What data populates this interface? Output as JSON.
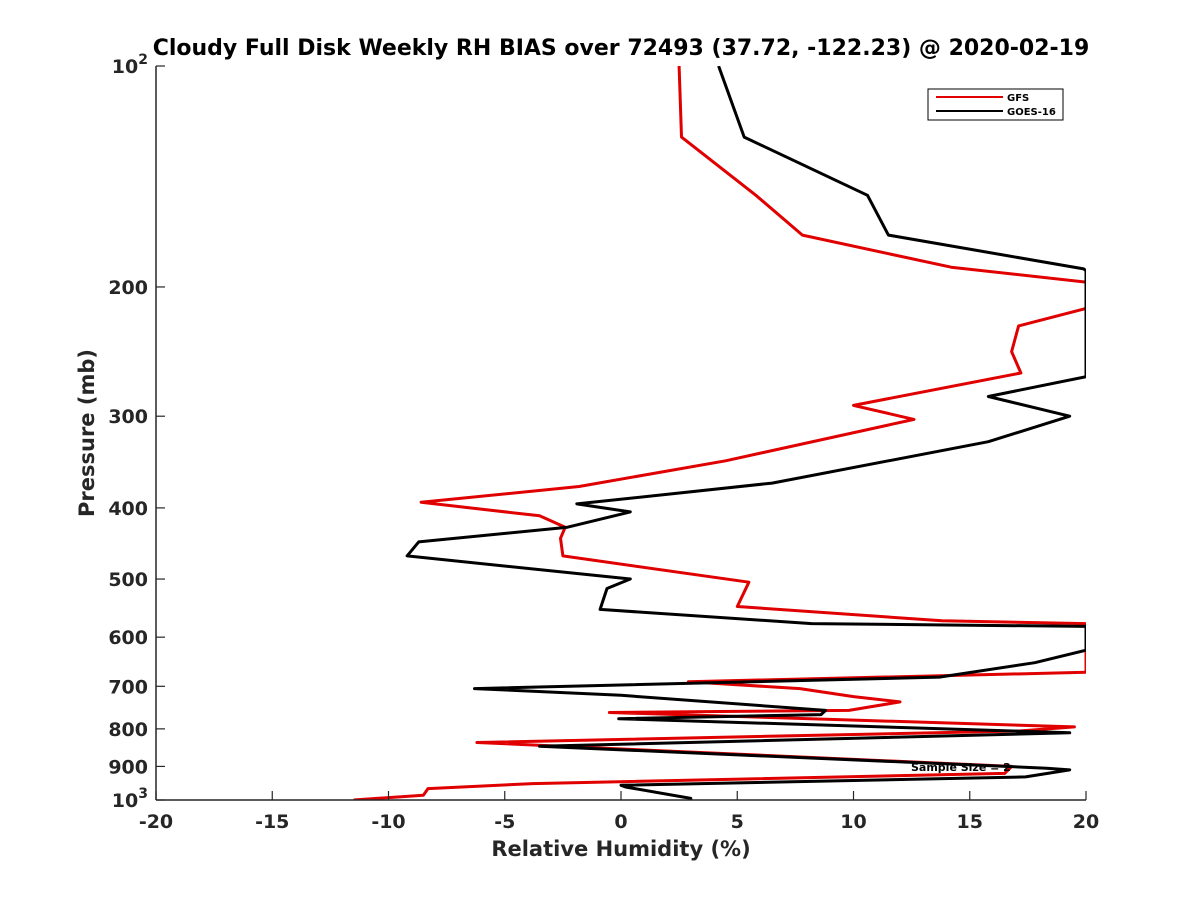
{
  "chart_data": {
    "type": "line",
    "title": "Cloudy Full Disk Weekly RH BIAS over 72493 (37.72, -122.23) @ 2020-02-19",
    "xlabel": "Relative Humidity (%)",
    "ylabel": "Pressure (mb)",
    "xlim": [
      -20,
      20
    ],
    "ylim": [
      100,
      1000
    ],
    "yscale": "log",
    "y_reversed": true,
    "grid": false,
    "legend_position": "top-right",
    "x_ticks": [
      "-20",
      "-15",
      "-10",
      "-5",
      "0",
      "5",
      "10",
      "15",
      "20"
    ],
    "x_tick_values": [
      -20,
      -15,
      -10,
      -5,
      0,
      5,
      10,
      15,
      20
    ],
    "y_ticks": [
      {
        "value": 100,
        "label": "10",
        "sup": "2"
      },
      {
        "value": 200,
        "label": "200",
        "sup": ""
      },
      {
        "value": 300,
        "label": "300",
        "sup": ""
      },
      {
        "value": 400,
        "label": "400",
        "sup": ""
      },
      {
        "value": 500,
        "label": "500",
        "sup": ""
      },
      {
        "value": 600,
        "label": "600",
        "sup": ""
      },
      {
        "value": 700,
        "label": "700",
        "sup": ""
      },
      {
        "value": 800,
        "label": "800",
        "sup": ""
      },
      {
        "value": 900,
        "label": "900",
        "sup": ""
      },
      {
        "value": 1000,
        "label": "10",
        "sup": "3"
      }
    ],
    "annotation": "Sample Size = 2",
    "series": [
      {
        "name": "GFS",
        "color": "#e00000",
        "points": [
          [
            2.5,
            100
          ],
          [
            2.6,
            125
          ],
          [
            5.8,
            150
          ],
          [
            7.8,
            170
          ],
          [
            14.2,
            188
          ],
          [
            20,
            197
          ],
          [
            20,
            214
          ],
          [
            17.1,
            226
          ],
          [
            16.8,
            245
          ],
          [
            17.2,
            262
          ],
          [
            10.0,
            290
          ],
          [
            12.6,
            303
          ],
          [
            4.5,
            345
          ],
          [
            -1.8,
            374
          ],
          [
            -8.6,
            393
          ],
          [
            -3.5,
            410
          ],
          [
            -2.4,
            425
          ],
          [
            -2.6,
            440
          ],
          [
            -2.5,
            465
          ],
          [
            5.5,
            505
          ],
          [
            5.0,
            545
          ],
          [
            13.8,
            570
          ],
          [
            20,
            575
          ],
          [
            20,
            670
          ],
          [
            2.9,
            690
          ],
          [
            7.7,
            705
          ],
          [
            10.0,
            723
          ],
          [
            12.0,
            735
          ],
          [
            9.8,
            755
          ],
          [
            -0.5,
            760
          ],
          [
            19.5,
            795
          ],
          [
            17.2,
            805
          ],
          [
            -6.2,
            835
          ],
          [
            16.8,
            900
          ],
          [
            16.5,
            920
          ],
          [
            -3.8,
            950
          ],
          [
            -8.3,
            965
          ],
          [
            -8.5,
            985
          ],
          [
            -11.5,
            1000
          ]
        ]
      },
      {
        "name": "GOES-16",
        "color": "#000000",
        "points": [
          [
            4.2,
            100
          ],
          [
            5.3,
            125
          ],
          [
            10.6,
            150
          ],
          [
            11.5,
            170
          ],
          [
            19.9,
            189
          ],
          [
            20,
            190
          ],
          [
            20,
            265
          ],
          [
            15.8,
            282
          ],
          [
            19.3,
            300
          ],
          [
            15.8,
            325
          ],
          [
            6.5,
            370
          ],
          [
            -1.9,
            395
          ],
          [
            0.4,
            405
          ],
          [
            -2.3,
            425
          ],
          [
            -8.7,
            445
          ],
          [
            -9.2,
            465
          ],
          [
            0.4,
            500
          ],
          [
            -0.6,
            515
          ],
          [
            -0.9,
            550
          ],
          [
            8.2,
            575
          ],
          [
            20,
            580
          ],
          [
            20,
            625
          ],
          [
            17.8,
            650
          ],
          [
            13.7,
            680
          ],
          [
            -6.3,
            705
          ],
          [
            0.0,
            720
          ],
          [
            8.8,
            755
          ],
          [
            8.6,
            765
          ],
          [
            -0.1,
            775
          ],
          [
            19.3,
            810
          ],
          [
            -3.5,
            845
          ],
          [
            18.3,
            905
          ],
          [
            19.3,
            910
          ],
          [
            17.4,
            930
          ],
          [
            0.0,
            955
          ],
          [
            0.2,
            960
          ],
          [
            3.0,
            995
          ],
          [
            3.0,
            1000
          ]
        ]
      }
    ]
  }
}
